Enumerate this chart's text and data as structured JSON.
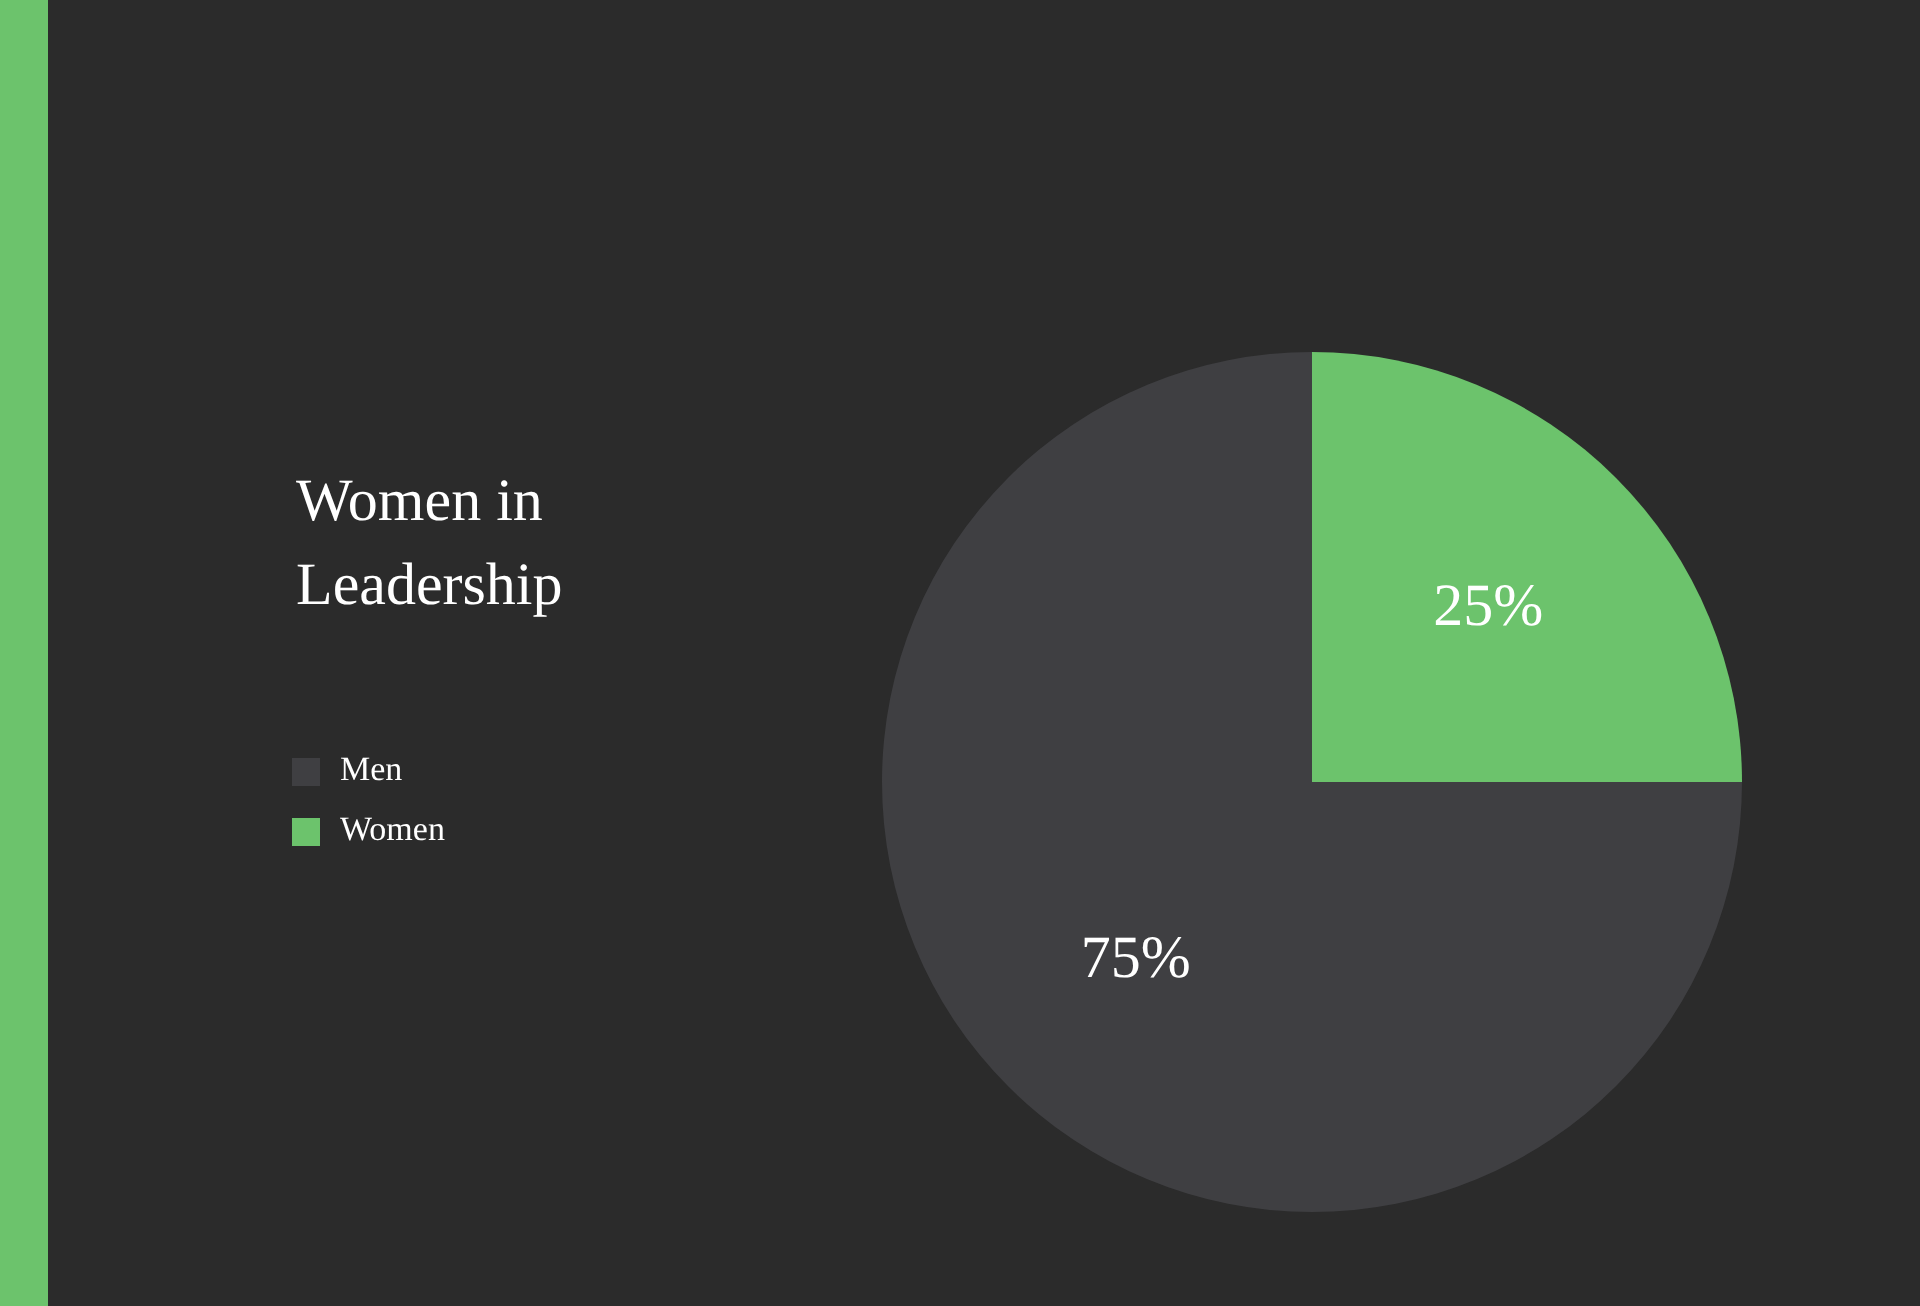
{
  "chart_data": {
    "type": "pie",
    "title": "Women in Leadership",
    "categories": [
      "Men",
      "Women"
    ],
    "values": [
      75,
      25
    ],
    "colors": [
      "#3f3f42",
      "#6cc36c"
    ],
    "value_labels": [
      "75%",
      "25%"
    ],
    "legend": "left"
  }
}
